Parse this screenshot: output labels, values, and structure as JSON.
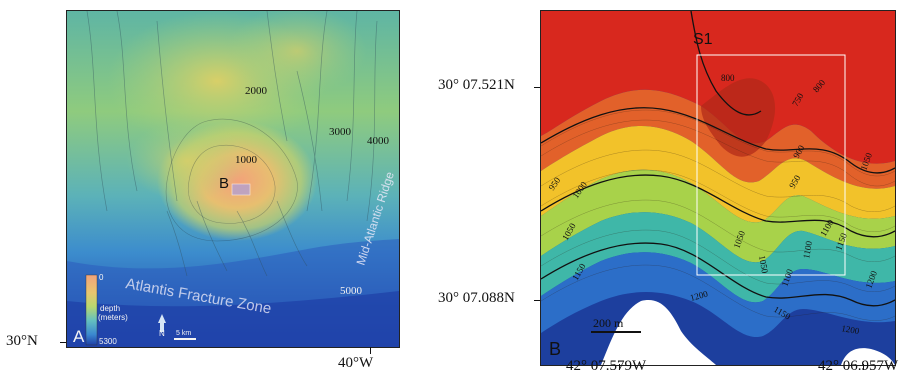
{
  "panelA": {
    "panel_letter": "A",
    "site_label": "B",
    "contours": [
      "2000",
      "1000",
      "3000",
      "4000",
      "5000"
    ],
    "features": {
      "ridge": "Mid-Atlantic Ridge",
      "fracture_zone": "Atlantis Fracture Zone"
    },
    "legend": {
      "top_value": "0",
      "title_line1": "depth",
      "title_line2": "(meters)",
      "bottom_value": "5300"
    },
    "north_label": "N",
    "scale_label": "5 km",
    "lat_label": "30°N",
    "lon_label": "40°W",
    "colors": {
      "deep": "#1e3fa6",
      "mid_deep": "#3a8fd0",
      "mid": "#7cc8c0",
      "mid_shallow": "#c7d36a",
      "shallow": "#e8b06a",
      "peak": "#f0a37c"
    }
  },
  "panelB": {
    "panel_letter": "B",
    "site_label": "S1",
    "contours": [
      "800",
      "750",
      "800",
      "900",
      "950",
      "1050",
      "950",
      "1000",
      "1050",
      "1050",
      "1100",
      "1150",
      "1100",
      "1050",
      "1100",
      "1200",
      "1150",
      "1200",
      "1150",
      "1200"
    ],
    "scale_label": "200 m",
    "lat_top": "30° 07.521N",
    "lat_bottom": "30° 07.088N",
    "lon_left": "42° 07.579W",
    "lon_right": "42° 06.957W",
    "colors": {
      "shallow": "#d8281e",
      "upper": "#e2612a",
      "mid_upper": "#f2c22a",
      "mid": "#a8d24a",
      "mid_deep": "#3fb7a8",
      "deep": "#2c6ec8",
      "deepest": "#1d3f9e"
    }
  }
}
